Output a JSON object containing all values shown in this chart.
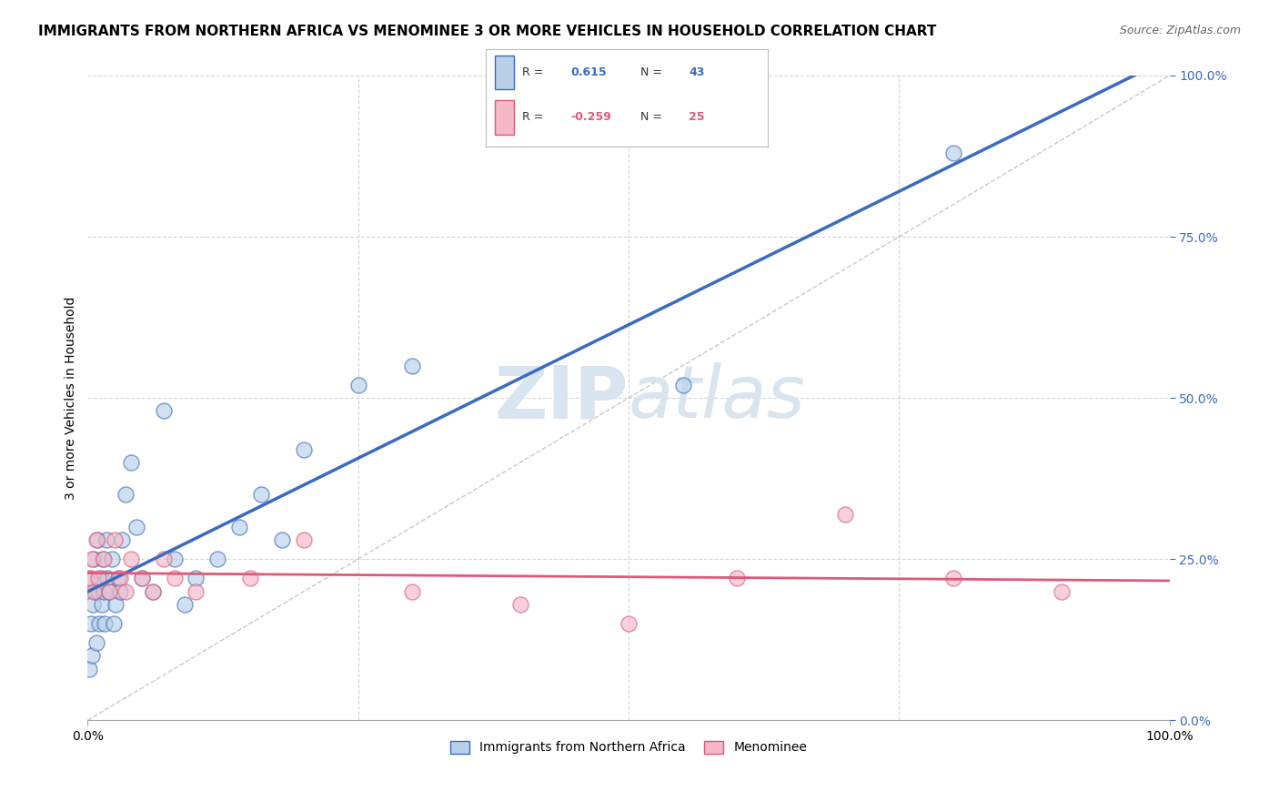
{
  "title": "IMMIGRANTS FROM NORTHERN AFRICA VS MENOMINEE 3 OR MORE VEHICLES IN HOUSEHOLD CORRELATION CHART",
  "source": "Source: ZipAtlas.com",
  "ylabel": "3 or more Vehicles in Household",
  "blue_r": 0.615,
  "blue_n": 43,
  "pink_r": -0.259,
  "pink_n": 25,
  "blue_label": "Immigrants from Northern Africa",
  "pink_label": "Menominee",
  "blue_color": "#b8d0e8",
  "blue_line_color": "#3a6bbf",
  "pink_color": "#f4b8c8",
  "pink_line_color": "#e05878",
  "watermark_zip": "ZIP",
  "watermark_atlas": "atlas",
  "watermark_color": "#d8e4f0",
  "watermark_fontsize": 58,
  "blue_points_x": [
    0.1,
    0.2,
    0.3,
    0.4,
    0.5,
    0.6,
    0.7,
    0.8,
    0.9,
    1.0,
    1.1,
    1.2,
    1.3,
    1.4,
    1.5,
    1.6,
    1.7,
    1.8,
    2.0,
    2.2,
    2.4,
    2.6,
    2.8,
    3.0,
    3.2,
    3.5,
    4.0,
    4.5,
    5.0,
    6.0,
    7.0,
    8.0,
    9.0,
    10.0,
    12.0,
    14.0,
    16.0,
    18.0,
    20.0,
    25.0,
    30.0,
    55.0,
    80.0
  ],
  "blue_points_y": [
    8.0,
    22.0,
    15.0,
    10.0,
    18.0,
    25.0,
    20.0,
    12.0,
    28.0,
    20.0,
    15.0,
    22.0,
    18.0,
    25.0,
    20.0,
    15.0,
    28.0,
    22.0,
    20.0,
    25.0,
    15.0,
    18.0,
    22.0,
    20.0,
    28.0,
    35.0,
    40.0,
    30.0,
    22.0,
    20.0,
    48.0,
    25.0,
    18.0,
    22.0,
    25.0,
    30.0,
    35.0,
    28.0,
    42.0,
    52.0,
    55.0,
    52.0,
    88.0
  ],
  "pink_points_x": [
    0.2,
    0.4,
    0.6,
    0.8,
    1.0,
    1.5,
    2.0,
    2.5,
    3.0,
    3.5,
    4.0,
    5.0,
    6.0,
    7.0,
    8.0,
    10.0,
    15.0,
    20.0,
    30.0,
    40.0,
    50.0,
    60.0,
    70.0,
    80.0,
    90.0
  ],
  "pink_points_y": [
    22.0,
    25.0,
    20.0,
    28.0,
    22.0,
    25.0,
    20.0,
    28.0,
    22.0,
    20.0,
    25.0,
    22.0,
    20.0,
    25.0,
    22.0,
    20.0,
    22.0,
    28.0,
    20.0,
    18.0,
    15.0,
    22.0,
    32.0,
    22.0,
    20.0
  ],
  "xlim": [
    0,
    100
  ],
  "ylim": [
    0,
    100
  ],
  "right_yticks": [
    0,
    25,
    50,
    75,
    100
  ],
  "right_ytick_labels": [
    "0.0%",
    "25.0%",
    "50.0%",
    "75.0%",
    "100.0%"
  ],
  "grid_color": "#cccccc",
  "background_color": "#ffffff",
  "title_fontsize": 11,
  "source_fontsize": 9
}
